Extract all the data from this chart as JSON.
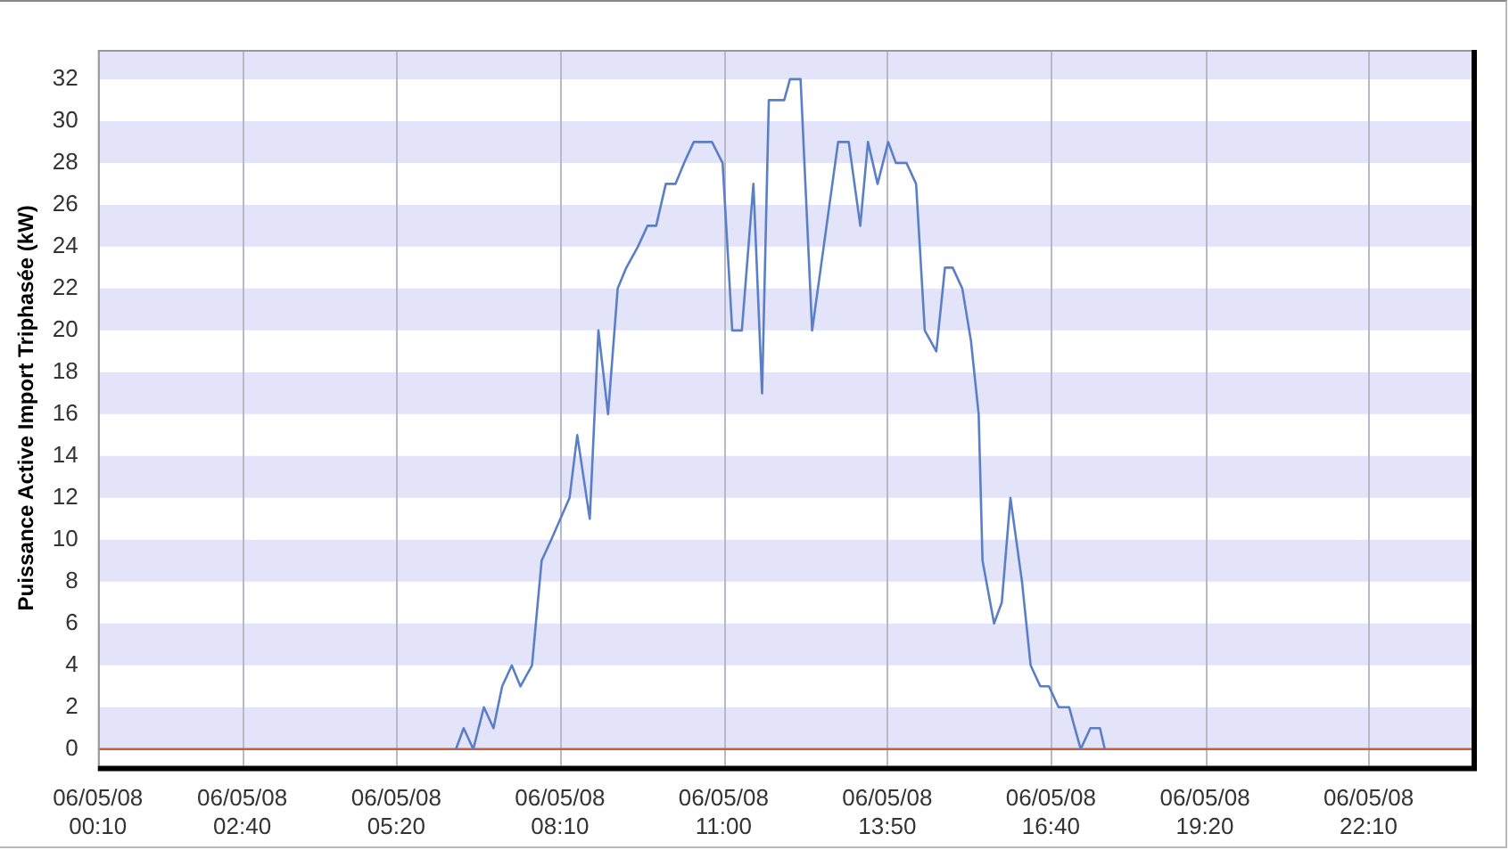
{
  "chart_data": {
    "type": "line",
    "ylabel": "Puissance Active Import Triphasée (kW)",
    "x": [
      "--05-06T06:22",
      "--05-06T06:30",
      "--05-06T06:40",
      "--05-06T06:51",
      "--05-06T07:01",
      "--05-06T07:10",
      "--05-06T07:20",
      "--05-06T07:29",
      "--05-06T07:41",
      "--05-06T07:51",
      "--05-06T08:01",
      "--05-06T08:20",
      "--05-06T08:28",
      "--05-06T08:41",
      "--05-06T08:50",
      "--05-06T09:00",
      "--05-06T09:10",
      "--05-06T09:19",
      "--05-06T09:31",
      "--05-06T09:41",
      "--05-06T09:50",
      "--05-06T10:00",
      "--05-06T10:10",
      "--05-06T10:19",
      "--05-06T10:29",
      "--05-06T10:48",
      "--05-06T10:59",
      "--05-06T11:09",
      "--05-06T11:19",
      "--05-06T11:31",
      "--05-06T11:40",
      "--05-06T11:47",
      "--05-06T12:03",
      "--05-06T12:09",
      "--05-06T12:20",
      "--05-06T12:32",
      "--05-06T12:44",
      "--05-06T12:59",
      "--05-06T13:10",
      "--05-06T13:22",
      "--05-06T13:30",
      "--05-06T13:40",
      "--05-06T13:51",
      "--05-06T13:59",
      "--05-06T14:10",
      "--05-06T14:20",
      "--05-06T14:29",
      "--05-06T14:41",
      "--05-06T14:50",
      "--05-06T14:58",
      "--05-06T15:08",
      "--05-06T15:17",
      "--05-06T15:25",
      "--05-06T15:29",
      "--05-06T15:41",
      "--05-06T15:49",
      "--05-06T15:58",
      "--05-06T16:10",
      "--05-06T16:19",
      "--05-06T16:29",
      "--05-06T16:38",
      "--05-06T16:48",
      "--05-06T16:59",
      "--05-06T17:11",
      "--05-06T17:21",
      "--05-06T17:31",
      "--05-06T17:36"
    ],
    "series": [
      {
        "color": "#5b7fc7",
        "values": [
          0,
          1,
          0,
          2,
          1,
          3,
          4,
          3,
          4,
          9,
          10,
          12,
          15,
          11,
          20,
          16,
          22,
          23,
          24,
          25,
          25,
          27,
          27,
          28,
          29,
          29,
          28,
          20,
          20,
          27,
          17,
          31,
          31,
          32,
          32,
          20,
          24,
          29,
          29,
          25,
          29,
          27,
          29,
          28,
          28,
          27,
          20,
          19,
          23,
          23,
          22,
          19.5,
          16,
          9,
          6,
          7,
          12,
          8,
          4,
          3,
          3,
          2,
          2,
          0,
          1,
          1,
          0
        ]
      }
    ],
    "xlim": [
      "--05-06T00:10",
      "--05-06T23:57"
    ],
    "xticks": [
      {
        "value": "--05-06T00:10",
        "label": "06/05/08 00:10"
      },
      {
        "value": "--05-06T02:40",
        "label": "06/05/08 02:40"
      },
      {
        "value": "--05-06T05:20",
        "label": "06/05/08 05:20"
      },
      {
        "value": "--05-06T08:10",
        "label": "06/05/08 08:10"
      },
      {
        "value": "--05-06T11:00",
        "label": "06/05/08 11:00"
      },
      {
        "value": "--05-06T13:50",
        "label": "06/05/08 13:50"
      },
      {
        "value": "--05-06T16:40",
        "label": "06/05/08 16:40"
      },
      {
        "value": "--05-06T19:20",
        "label": "06/05/08 19:20"
      },
      {
        "value": "--05-06T22:10",
        "label": "06/05/08 22:10"
      }
    ],
    "ylim": [
      -0.8,
      33.4
    ],
    "yticks": [
      0,
      2,
      4,
      6,
      8,
      10,
      12,
      14,
      16,
      18,
      20,
      22,
      24,
      26,
      28,
      30,
      32
    ],
    "grid": "x",
    "legend": false,
    "marker": "none",
    "line_style": "solid",
    "ref_lines": [
      {
        "axis": "y",
        "value": 0,
        "color": "#c8603a"
      }
    ]
  }
}
